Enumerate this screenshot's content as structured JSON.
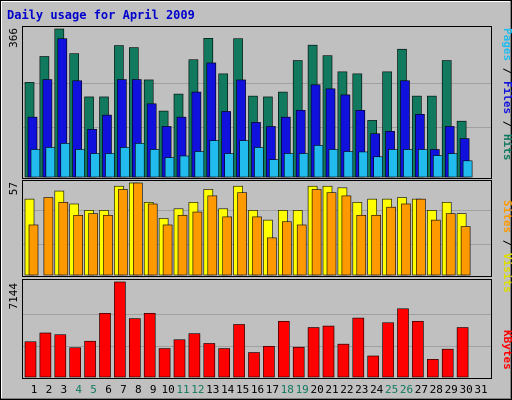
{
  "chart_data": {
    "type": "bar",
    "title": "Daily usage for April 2009",
    "x_categories": [
      "1",
      "2",
      "3",
      "4",
      "5",
      "6",
      "7",
      "8",
      "9",
      "10",
      "11",
      "12",
      "13",
      "14",
      "15",
      "16",
      "17",
      "18",
      "19",
      "20",
      "21",
      "22",
      "23",
      "24",
      "25",
      "26",
      "27",
      "28",
      "29",
      "30",
      "31"
    ],
    "weekend_days": [
      "4",
      "5",
      "11",
      "12",
      "18",
      "19",
      "25",
      "26"
    ],
    "panels": [
      {
        "name": "hits-files-pages",
        "y_max": 366,
        "y_max_label": "366",
        "right_legend": [
          "Pages",
          "Files",
          "Hits"
        ],
        "series": [
          {
            "name": "Hits",
            "color": "#117a5e",
            "values": [
              234,
              298,
              366,
              305,
              198,
              198,
              325,
              320,
              240,
              163,
              205,
              290,
              343,
              255,
              342,
              200,
              198,
              210,
              288,
              326,
              300,
              260,
              255,
              140,
              260,
              316,
              200,
              200,
              288,
              138,
              0
            ]
          },
          {
            "name": "Files",
            "color": "#1111dd",
            "values": [
              148,
              241,
              342,
              238,
              118,
              153,
              241,
              241,
              181,
              125,
              148,
              210,
              282,
              162,
              240,
              135,
              125,
              148,
              165,
              228,
              218,
              203,
              165,
              107,
              113,
              238,
              155,
              68,
              125,
              95,
              0
            ]
          },
          {
            "name": "Pages",
            "color": "#22bbee",
            "values": [
              68,
              73,
              83,
              68,
              58,
              58,
              73,
              83,
              68,
              48,
              52,
              63,
              90,
              58,
              90,
              73,
              43,
              58,
              58,
              78,
              68,
              63,
              62,
              50,
              68,
              68,
              68,
              53,
              58,
              40,
              0
            ]
          }
        ]
      },
      {
        "name": "visits-sites",
        "y_max": 57,
        "y_max_label": "57",
        "right_legend": [
          "Sites",
          "Visits"
        ],
        "series": [
          {
            "name": "Visits",
            "color": "#ffff00",
            "values": [
              47,
              0,
              52,
              44,
              40,
              40,
              55,
              57,
              45,
              35,
              41,
              45,
              53,
              41,
              55,
              40,
              34,
              40,
              40,
              55,
              55,
              54,
              45,
              47,
              47,
              48,
              47,
              40,
              45,
              38,
              0
            ]
          },
          {
            "name": "Sites",
            "color": "#ff9900",
            "values": [
              31,
              48,
              45,
              37,
              38,
              37,
              53,
              57,
              44,
              31,
              37,
              39,
              49,
              36,
              51,
              36,
              23,
              33,
              31,
              53,
              51,
              49,
              37,
              37,
              42,
              44,
              47,
              34,
              38,
              30,
              0
            ]
          }
        ]
      },
      {
        "name": "kbytes",
        "y_max": 7144,
        "y_max_label": "7144",
        "right_legend": [
          "KBytes"
        ],
        "series": [
          {
            "name": "KBytes",
            "color": "#ff0000",
            "values": [
              2650,
              3310,
              3180,
              2200,
              2690,
              4790,
              7144,
              4390,
              4790,
              2140,
              2800,
              3260,
              2520,
              2140,
              3950,
              1840,
              2310,
              4190,
              2240,
              3720,
              3830,
              2470,
              4430,
              1580,
              4080,
              5130,
              4190,
              1330,
              2090,
              3720,
              0
            ]
          }
        ]
      }
    ]
  }
}
